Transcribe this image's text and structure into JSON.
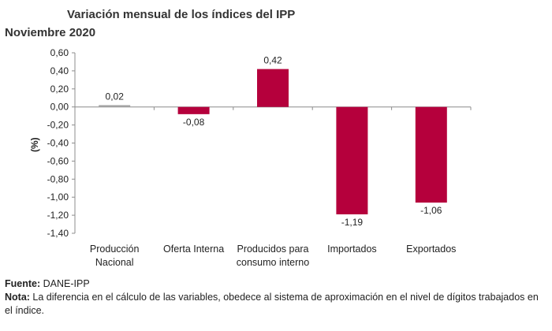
{
  "chart_data": {
    "type": "bar",
    "title": "Variación mensual de los índices del IPP",
    "subtitle": "Noviembre 2020",
    "ylabel": "(%)",
    "xlabel": "",
    "ylim": [
      -1.4,
      0.6
    ],
    "yticks": [
      0.6,
      0.4,
      0.2,
      0.0,
      -0.2,
      -0.4,
      -0.6,
      -0.8,
      -1.0,
      -1.2,
      -1.4
    ],
    "ytick_labels": [
      "0,60",
      "0,40",
      "0,20",
      "0,00",
      "-0,20",
      "-0,40",
      "-0,60",
      "-0,80",
      "-1,00",
      "-1,20",
      "-1,40"
    ],
    "categories": [
      [
        "Producción",
        "Nacional"
      ],
      [
        "Oferta Interna"
      ],
      [
        "Producidos para",
        "consumo interno"
      ],
      [
        "Importados"
      ],
      [
        "Exportados"
      ]
    ],
    "values": [
      0.02,
      -0.08,
      0.42,
      -1.19,
      -1.06
    ],
    "value_labels": [
      "0,02",
      "-0,08",
      "0,42",
      "-1,19",
      "-1,06"
    ],
    "bar_colors": [
      "#a6a6a6",
      "#b5003c",
      "#b5003c",
      "#b5003c",
      "#b5003c"
    ],
    "grid": false
  },
  "footer": {
    "source_label": "Fuente:",
    "source_text": " DANE-IPP",
    "note_label": "Nota:",
    "note_text": " La diferencia en el cálculo de las variables, obedece al sistema de aproximación en el nivel de dígitos trabajados en el índice."
  }
}
